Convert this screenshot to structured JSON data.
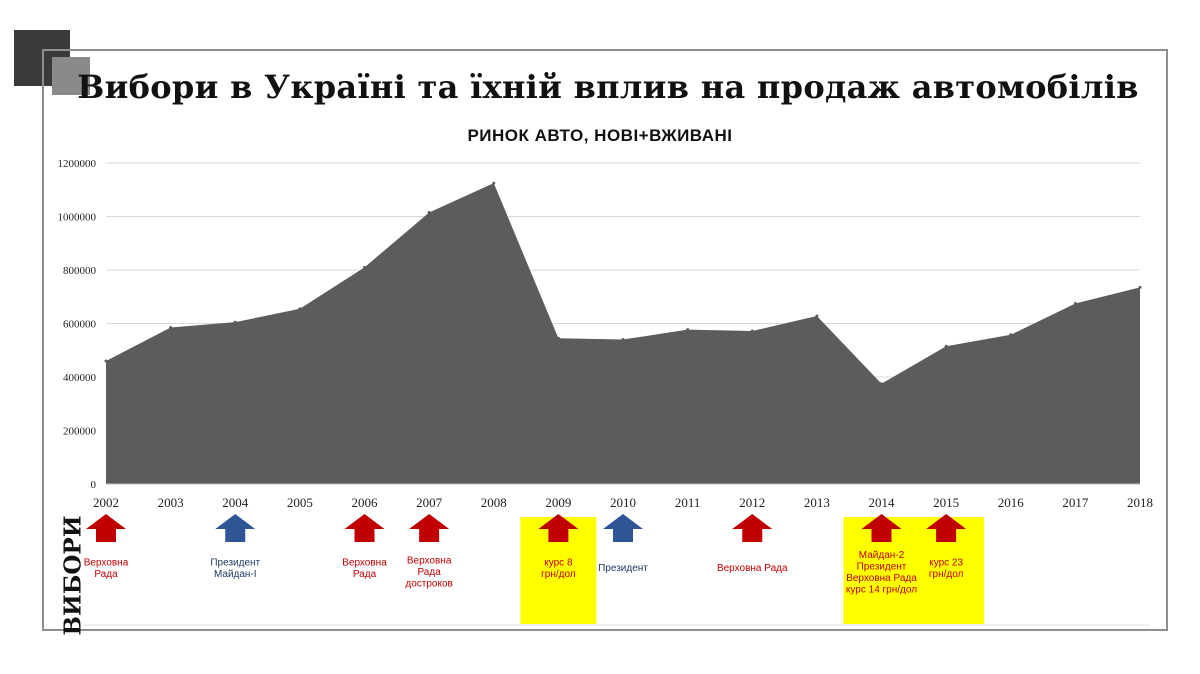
{
  "title": "Вибори в Україні та їхній вплив на продаж автомобілів",
  "elections_label": "ВИБОРИ",
  "colors": {
    "area": "#5c5c5c",
    "grid": "#d9d9d9",
    "red_arrow": "#c00000",
    "blue_arrow": "#2f5597",
    "highlight": "#ffff00",
    "red_text": "#c00000",
    "blue_text": "#1f3864"
  },
  "chart_data": {
    "type": "area",
    "title": "РИНОК АВТО, НОВІ+ВЖИВАНІ",
    "x": [
      "2002",
      "2003",
      "2004",
      "2005",
      "2006",
      "2007",
      "2008",
      "2009",
      "2010",
      "2011",
      "2012",
      "2013",
      "2014",
      "2015",
      "2016",
      "2017",
      "2018"
    ],
    "values": [
      460000,
      585000,
      605000,
      655000,
      810000,
      1015000,
      1125000,
      545000,
      540000,
      577000,
      572000,
      628000,
      375000,
      515000,
      558000,
      675000,
      735000
    ],
    "y_ticks": [
      "0",
      "200000",
      "400000",
      "600000",
      "800000",
      "1000000",
      "1200000"
    ],
    "ylim": [
      0,
      1200000
    ],
    "grid": true,
    "legend": "none"
  },
  "elections": [
    {
      "year": "2002",
      "color": "red",
      "highlight": false,
      "lines": [
        "Верховна",
        "Рада"
      ]
    },
    {
      "year": "2004",
      "color": "blue",
      "highlight": false,
      "lines": [
        "Президент",
        "Майдан-I"
      ]
    },
    {
      "year": "2006",
      "color": "red",
      "highlight": false,
      "lines": [
        "Верховна",
        "Рада"
      ]
    },
    {
      "year": "2007",
      "color": "red",
      "highlight": false,
      "lines": [
        "Верховна",
        "Рада",
        "достроков"
      ]
    },
    {
      "year": "2009",
      "color": "red",
      "highlight": true,
      "lines": [
        "курс 8",
        "грн/дол"
      ]
    },
    {
      "year": "2010",
      "color": "blue",
      "highlight": false,
      "lines": [
        "Президент"
      ]
    },
    {
      "year": "2012",
      "color": "red",
      "highlight": false,
      "lines": [
        "Верховна Рада"
      ]
    },
    {
      "year": "2014",
      "color": "red",
      "highlight": true,
      "lines": [
        "Майдан-2",
        "Президент",
        "Верховна Рада",
        "курс 14 грн/дол"
      ]
    },
    {
      "year": "2015",
      "color": "red",
      "highlight": true,
      "lines": [
        "курс 23",
        "грн/дол"
      ]
    }
  ]
}
